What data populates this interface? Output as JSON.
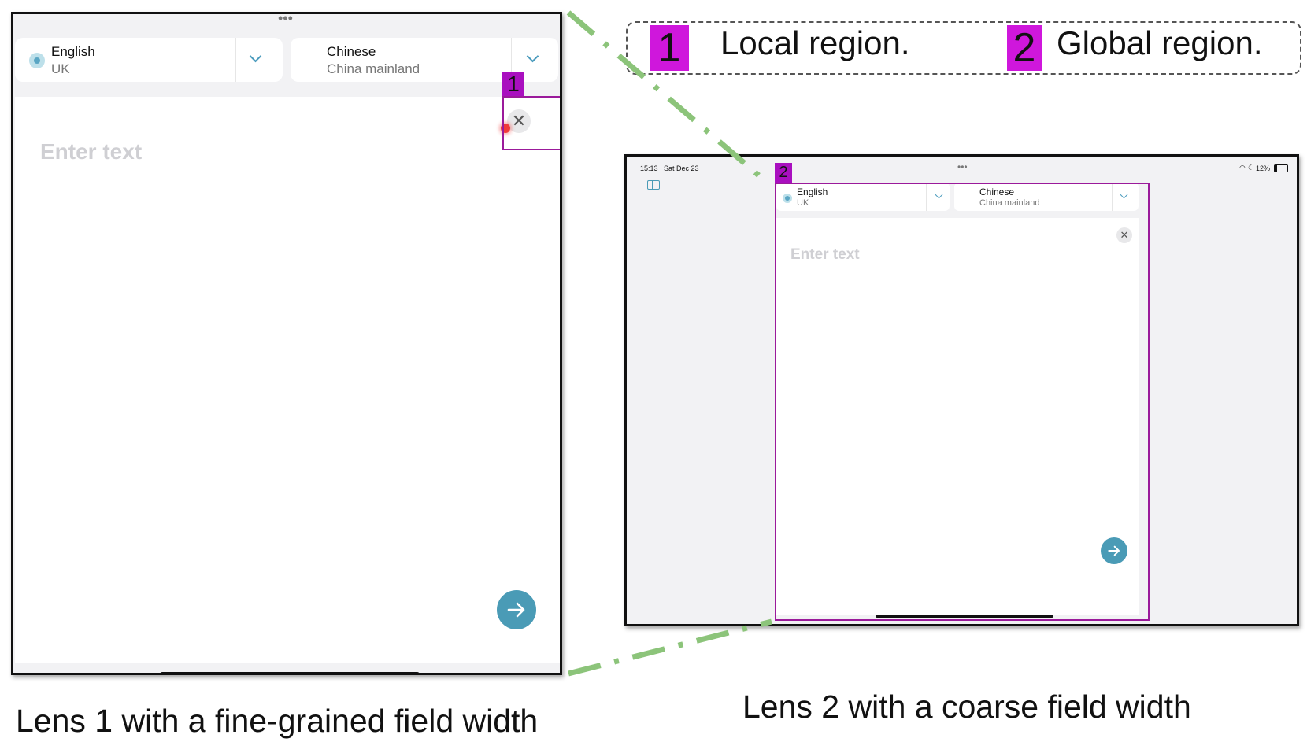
{
  "legend": {
    "items": [
      {
        "num": "1",
        "label": "Local region."
      },
      {
        "num": "2",
        "label": "Global region."
      }
    ],
    "tag_color": "#cf17dc"
  },
  "lens1": {
    "caption": "Lens 1 with a fine-grained field width",
    "source_lang": {
      "name": "English",
      "region": "UK"
    },
    "target_lang": {
      "name": "Chinese",
      "region": "China mainland"
    },
    "placeholder": "Enter text",
    "region_tag": "1",
    "clear_icon": "close-icon",
    "send_icon": "arrow-right-icon"
  },
  "lens2": {
    "caption": "Lens 2 with a coarse field width",
    "status_time": "15:13",
    "status_date": "Sat Dec 23",
    "battery": "12%",
    "source_lang": {
      "name": "English",
      "region": "UK"
    },
    "target_lang": {
      "name": "Chinese",
      "region": "China mainland"
    },
    "placeholder": "Enter text",
    "region_tag": "2"
  },
  "colors": {
    "connector": "#8cc47a",
    "region_border": "#9b1a9b",
    "accent": "#4a9bb6"
  }
}
